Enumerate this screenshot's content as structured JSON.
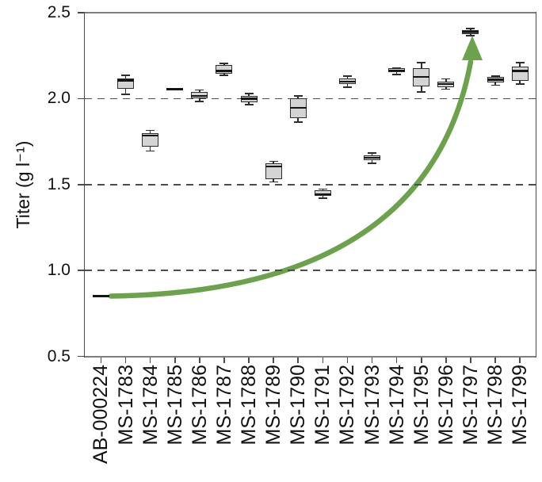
{
  "chart_data": {
    "type": "box",
    "title": "",
    "xlabel": "",
    "ylabel": "Titer (g l⁻¹)",
    "ylim": [
      0.5,
      2.5
    ],
    "yticks": [
      2.5,
      2.0,
      1.5,
      1.0,
      0.5
    ],
    "gridlines": [
      2.0,
      1.5,
      1.0
    ],
    "grid_style": "dashed",
    "legend": "none",
    "categories": [
      "AB-000224",
      "MS-1783",
      "MS-1784",
      "MS-1785",
      "MS-1786",
      "MS-1787",
      "MS-1788",
      "MS-1789",
      "MS-1790",
      "MS-1791",
      "MS-1792",
      "MS-1793",
      "MS-1794",
      "MS-1795",
      "MS-1796",
      "MS-1797",
      "MS-1798",
      "MS-1799"
    ],
    "boxes": [
      {
        "label": "AB-000224",
        "median": 0.85,
        "line_only": true
      },
      {
        "label": "MS-1783",
        "whisker_low": 2.025,
        "q1": 2.055,
        "median": 2.105,
        "q3": 2.115,
        "whisker_high": 2.135
      },
      {
        "label": "MS-1784",
        "whisker_low": 1.695,
        "q1": 1.72,
        "median": 1.785,
        "q3": 1.8,
        "whisker_high": 1.815
      },
      {
        "label": "MS-1785",
        "median": 2.055,
        "line_only": true
      },
      {
        "label": "MS-1786",
        "whisker_low": 1.985,
        "q1": 2.0,
        "median": 2.015,
        "q3": 2.04,
        "whisker_high": 2.05
      },
      {
        "label": "MS-1787",
        "whisker_low": 2.135,
        "q1": 2.145,
        "median": 2.16,
        "q3": 2.195,
        "whisker_high": 2.205
      },
      {
        "label": "MS-1788",
        "whisker_low": 1.965,
        "q1": 1.98,
        "median": 2.0,
        "q3": 2.015,
        "whisker_high": 2.03
      },
      {
        "label": "MS-1789",
        "whisker_low": 1.515,
        "q1": 1.53,
        "median": 1.605,
        "q3": 1.625,
        "whisker_high": 1.635
      },
      {
        "label": "MS-1790",
        "whisker_low": 1.865,
        "q1": 1.885,
        "median": 1.945,
        "q3": 2.0,
        "whisker_high": 2.015
      },
      {
        "label": "MS-1791",
        "whisker_low": 1.42,
        "q1": 1.432,
        "median": 1.443,
        "q3": 1.468,
        "whisker_high": 1.473
      },
      {
        "label": "MS-1792",
        "whisker_low": 2.065,
        "q1": 2.085,
        "median": 2.1,
        "q3": 2.115,
        "whisker_high": 2.13
      },
      {
        "label": "MS-1793",
        "whisker_low": 1.625,
        "q1": 1.64,
        "median": 1.655,
        "q3": 1.67,
        "whisker_high": 1.685
      },
      {
        "label": "MS-1794",
        "whisker_low": 2.14,
        "q1": 2.155,
        "median": 2.162,
        "q3": 2.175,
        "whisker_high": 2.177
      },
      {
        "label": "MS-1795",
        "whisker_low": 2.04,
        "q1": 2.07,
        "median": 2.125,
        "q3": 2.175,
        "whisker_high": 2.21
      },
      {
        "label": "MS-1796",
        "whisker_low": 2.055,
        "q1": 2.065,
        "median": 2.085,
        "q3": 2.1,
        "whisker_high": 2.115
      },
      {
        "label": "MS-1797",
        "whisker_low": 2.368,
        "q1": 2.375,
        "median": 2.388,
        "q3": 2.4,
        "whisker_high": 2.408,
        "highlight": true
      },
      {
        "label": "MS-1798",
        "whisker_low": 2.078,
        "q1": 2.095,
        "median": 2.11,
        "q3": 2.128,
        "whisker_high": 2.13
      },
      {
        "label": "MS-1799",
        "whisker_low": 2.085,
        "q1": 2.105,
        "median": 2.16,
        "q3": 2.185,
        "whisker_high": 2.208
      }
    ],
    "annotation": {
      "shape": "curved-arrow",
      "from_category": "AB-000224",
      "from_value": 0.85,
      "to_category": "MS-1797",
      "to_value": 2.37,
      "meaning": "improvement from parent strain baseline to best strain"
    },
    "colors": {
      "box_fill": "#d4d4d4",
      "box_fill_highlight": "#4e4e4e",
      "box_edge": "#2d2d2d",
      "median": "#141414",
      "grid": "#4d4d4d",
      "spine": "#7e7e7e",
      "arrow_green": "#6ba24b",
      "text": "#111111"
    }
  }
}
